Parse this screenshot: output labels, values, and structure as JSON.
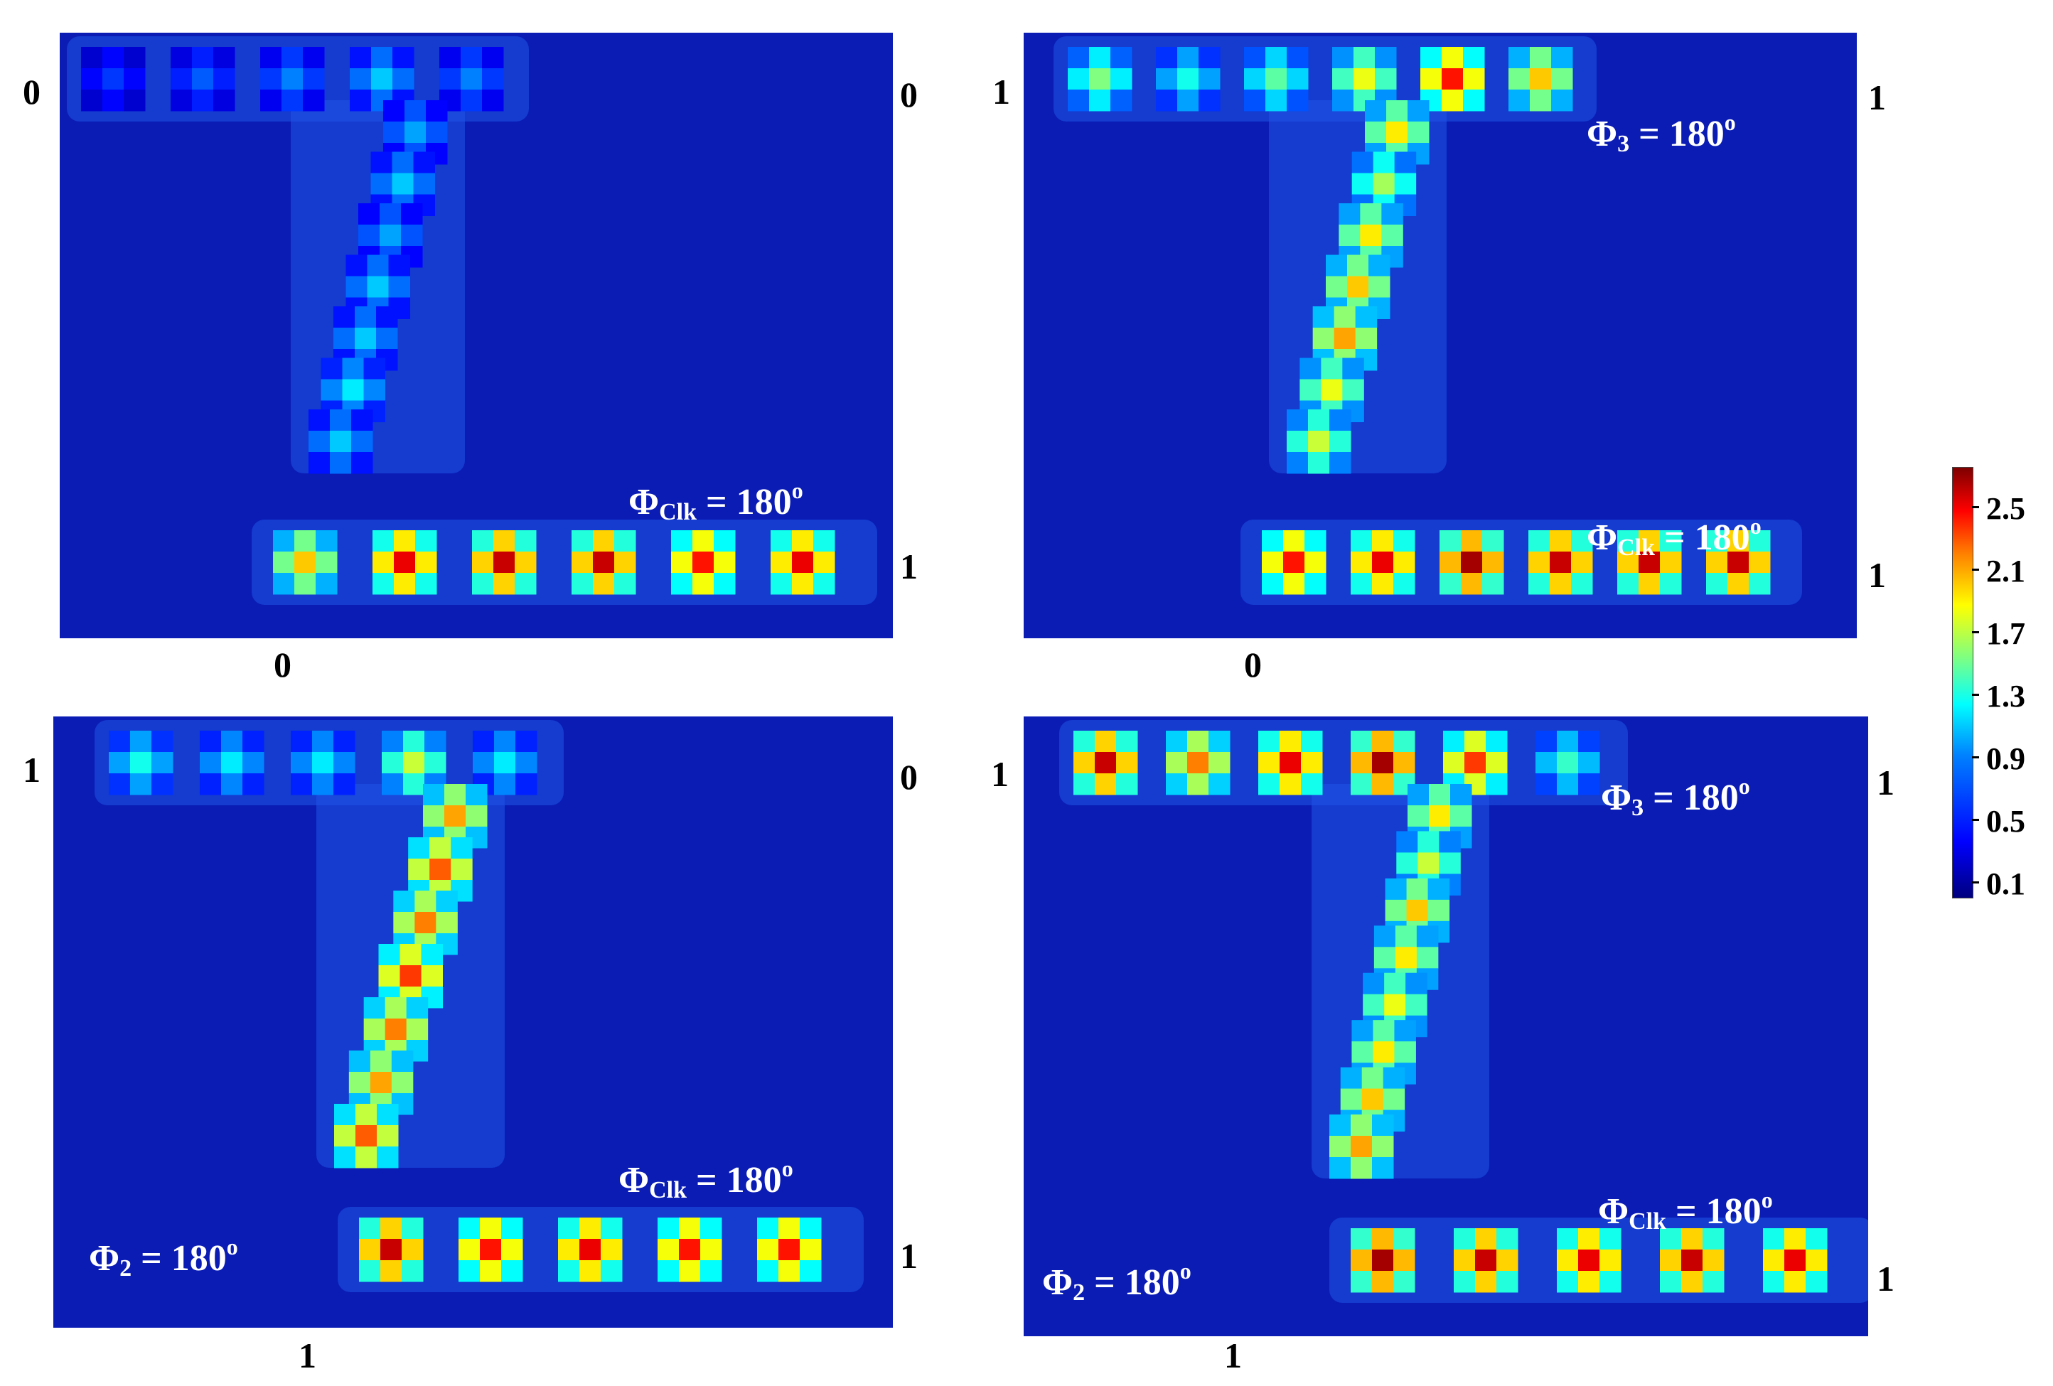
{
  "panels": [
    {
      "id": "top-left",
      "ports": {
        "top_left": "0",
        "top_right": "0",
        "bottom_right": "1",
        "bottom": "0"
      },
      "labels": {
        "clk": "ΦClk = 180°",
        "p3": "",
        "p2": ""
      },
      "levels": {
        "top_row": [
          0.5,
          0.6,
          0.7,
          0.9,
          0.7
        ],
        "vertical": [
          0.8,
          0.9,
          0.8,
          0.9,
          0.9,
          1.0,
          0.9
        ],
        "bottom_row": [
          1.9,
          2.5,
          2.6,
          2.6,
          2.4,
          2.5
        ]
      }
    },
    {
      "id": "top-right",
      "ports": {
        "top_left": "1",
        "top_right": "1",
        "bottom_right": "1",
        "bottom": "0"
      },
      "labels": {
        "clk": "ΦClk = 180°",
        "p3": "Φ3 = 180°",
        "p2": ""
      },
      "levels": {
        "top_row": [
          1.4,
          1.1,
          1.3,
          1.7,
          2.4,
          1.9
        ],
        "vertical": [
          1.8,
          1.5,
          1.8,
          1.9,
          2.0,
          1.7,
          1.6
        ],
        "bottom_row": [
          2.4,
          2.5,
          2.7,
          2.6,
          2.6,
          2.6
        ]
      }
    },
    {
      "id": "bottom-left",
      "ports": {
        "top_left": "1",
        "top_right": "0",
        "bottom_right": "1",
        "bottom": "1"
      },
      "labels": {
        "clk": "ΦClk = 180°",
        "p3": "",
        "p2": "Φ2 = 180°"
      },
      "levels": {
        "top_row": [
          1.1,
          1.0,
          1.0,
          1.6,
          1.0
        ],
        "vertical": [
          2.0,
          2.2,
          2.1,
          2.3,
          2.1,
          2.0,
          2.2
        ],
        "bottom_row": [
          2.6,
          2.4,
          2.5,
          2.4,
          2.4
        ]
      }
    },
    {
      "id": "bottom-right",
      "ports": {
        "top_left": "1",
        "top_right": "1",
        "bottom_right": "1",
        "bottom": "1"
      },
      "labels": {
        "clk": "ΦClk = 180°",
        "p3": "Φ3 = 180°",
        "p2": "Φ2 = 180°"
      },
      "levels": {
        "top_row": [
          2.6,
          2.1,
          2.5,
          2.7,
          2.3,
          1.2
        ],
        "vertical": [
          1.8,
          1.6,
          1.9,
          1.8,
          1.7,
          1.8,
          1.9,
          2.0
        ],
        "bottom_row": [
          2.7,
          2.6,
          2.5,
          2.6,
          2.5
        ]
      }
    }
  ],
  "colorbar": {
    "ticks": [
      "2.5",
      "2.1",
      "1.7",
      "1.3",
      "0.9",
      "0.5",
      "0.1"
    ],
    "min": 0.0,
    "max": 2.8
  },
  "colors": {
    "background": "#0a1cb4",
    "scale": [
      "#00007f",
      "#0000ff",
      "#0080ff",
      "#00ffff",
      "#80ff80",
      "#ffff00",
      "#ff8000",
      "#ff0000",
      "#7f0000"
    ]
  }
}
